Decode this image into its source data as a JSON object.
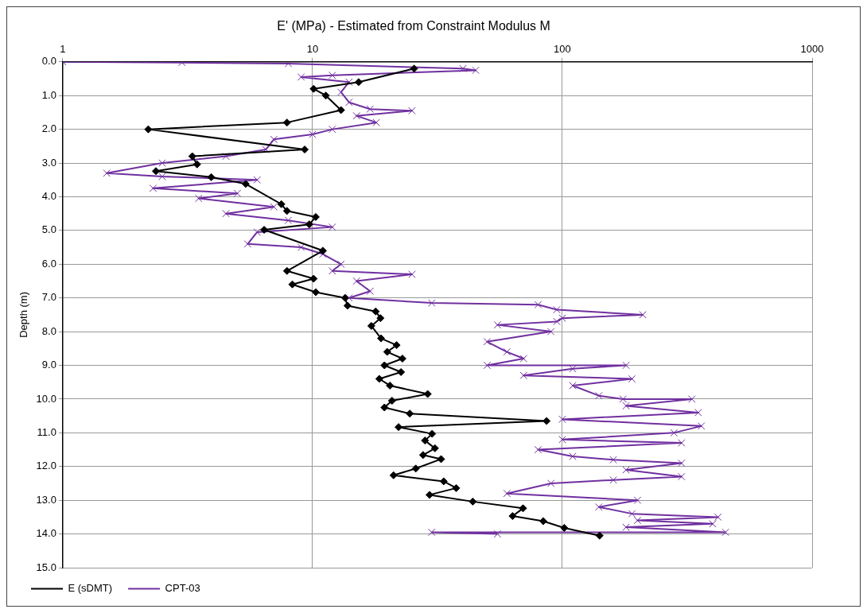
{
  "chart_data": {
    "type": "line",
    "title": "E' (MPa) - Estimated from Constraint Modulus M",
    "ylabel": "Depth (m)",
    "log": "x",
    "xlim": [
      1,
      1000
    ],
    "xticks": [
      1,
      10,
      100,
      1000
    ],
    "ylim": [
      15,
      0
    ],
    "yticks": [
      {
        "value": 0,
        "label": "0.0"
      },
      {
        "value": 1,
        "label": "1.0"
      },
      {
        "value": 2,
        "label": "2.0"
      },
      {
        "value": 3,
        "label": "3.0"
      },
      {
        "value": 4,
        "label": "4.0"
      },
      {
        "value": 5,
        "label": "5.0"
      },
      {
        "value": 6,
        "label": "6.0"
      },
      {
        "value": 7,
        "label": "7.0"
      },
      {
        "value": 8,
        "label": "8.0"
      },
      {
        "value": 9,
        "label": "9.0"
      },
      {
        "value": 10,
        "label": "10.0"
      },
      {
        "value": 11,
        "label": "11.0"
      },
      {
        "value": 12,
        "label": "12.0"
      },
      {
        "value": 13,
        "label": "13.0"
      },
      {
        "value": 14,
        "label": "14.0"
      },
      {
        "value": 15,
        "label": "15.0"
      }
    ],
    "grid": true,
    "legend": "bottom",
    "line_style": "solid",
    "series": [
      {
        "name": "E (sDMT)",
        "color": "#000000",
        "marker": "diamond",
        "x": [
          25.5,
          15.3,
          10.1,
          11.3,
          13.0,
          7.9,
          2.2,
          9.3,
          3.3,
          3.45,
          2.36,
          3.93,
          5.4,
          7.5,
          7.9,
          10.3,
          9.7,
          6.4,
          11.0,
          7.9,
          10.1,
          8.3,
          10.3,
          13.5,
          13.8,
          17.9,
          18.7,
          17.2,
          18.8,
          21.7,
          19.9,
          22.9,
          19.4,
          22.6,
          18.5,
          20.4,
          28.9,
          20.8,
          19.4,
          24.5,
          86.5,
          22.1,
          30.1,
          28.2,
          30.9,
          27.7,
          32.7,
          25.9,
          21.1,
          33.5,
          37.6,
          29.4,
          43.8,
          69.6,
          63.2,
          83.9,
          101.8,
          141
        ],
        "values": [
          0.2,
          0.6,
          0.8,
          1.0,
          1.43,
          1.8,
          2.0,
          2.6,
          2.8,
          3.04,
          3.24,
          3.42,
          3.62,
          4.22,
          4.42,
          4.6,
          4.82,
          4.98,
          5.6,
          6.2,
          6.43,
          6.6,
          6.83,
          7.0,
          7.23,
          7.4,
          7.6,
          7.83,
          8.2,
          8.4,
          8.6,
          8.8,
          9.0,
          9.2,
          9.4,
          9.6,
          9.85,
          10.05,
          10.25,
          10.43,
          10.65,
          10.83,
          11.03,
          11.23,
          11.46,
          11.66,
          11.78,
          12.06,
          12.26,
          12.44,
          12.64,
          12.84,
          13.04,
          13.24,
          13.47,
          13.62,
          13.82,
          14.05
        ]
      },
      {
        "name": "CPT-03",
        "color": "#7030a0",
        "marker": "cross",
        "x": [
          1,
          3,
          8,
          40,
          45,
          12,
          9,
          14,
          13,
          14,
          17,
          25,
          15,
          18,
          12,
          10,
          7,
          6.5,
          4.5,
          2.5,
          1.5,
          2.5,
          6,
          2.3,
          5,
          3.5,
          7,
          4.5,
          8,
          12,
          6,
          5.5,
          9,
          11,
          13,
          12,
          25,
          15,
          17,
          14,
          30,
          80,
          95,
          210,
          100,
          95,
          55,
          90,
          50,
          60,
          70,
          50,
          180,
          110,
          70,
          190,
          110,
          140,
          175,
          330,
          180,
          350,
          100,
          360,
          280,
          100,
          300,
          80,
          110,
          160,
          300,
          180,
          300,
          160,
          90,
          60,
          200,
          140,
          190,
          420,
          200,
          400,
          180,
          450,
          30,
          55
        ],
        "values": [
          0.0,
          0.02,
          0.05,
          0.2,
          0.25,
          0.4,
          0.45,
          0.6,
          0.9,
          1.2,
          1.4,
          1.45,
          1.6,
          1.8,
          2.0,
          2.15,
          2.3,
          2.6,
          2.8,
          3.0,
          3.3,
          3.4,
          3.5,
          3.75,
          3.9,
          4.05,
          4.3,
          4.5,
          4.7,
          4.9,
          5.05,
          5.4,
          5.5,
          5.7,
          6.0,
          6.2,
          6.3,
          6.5,
          6.8,
          7.0,
          7.15,
          7.2,
          7.35,
          7.5,
          7.6,
          7.7,
          7.8,
          8.0,
          8.3,
          8.6,
          8.8,
          9.0,
          9.0,
          9.1,
          9.3,
          9.4,
          9.6,
          9.9,
          10.0,
          10.0,
          10.2,
          10.4,
          10.6,
          10.8,
          11.0,
          11.2,
          11.3,
          11.5,
          11.7,
          11.8,
          11.9,
          12.1,
          12.3,
          12.4,
          12.5,
          12.8,
          13.0,
          13.2,
          13.4,
          13.5,
          13.6,
          13.7,
          13.8,
          13.95,
          13.95,
          14.0
        ]
      }
    ]
  }
}
